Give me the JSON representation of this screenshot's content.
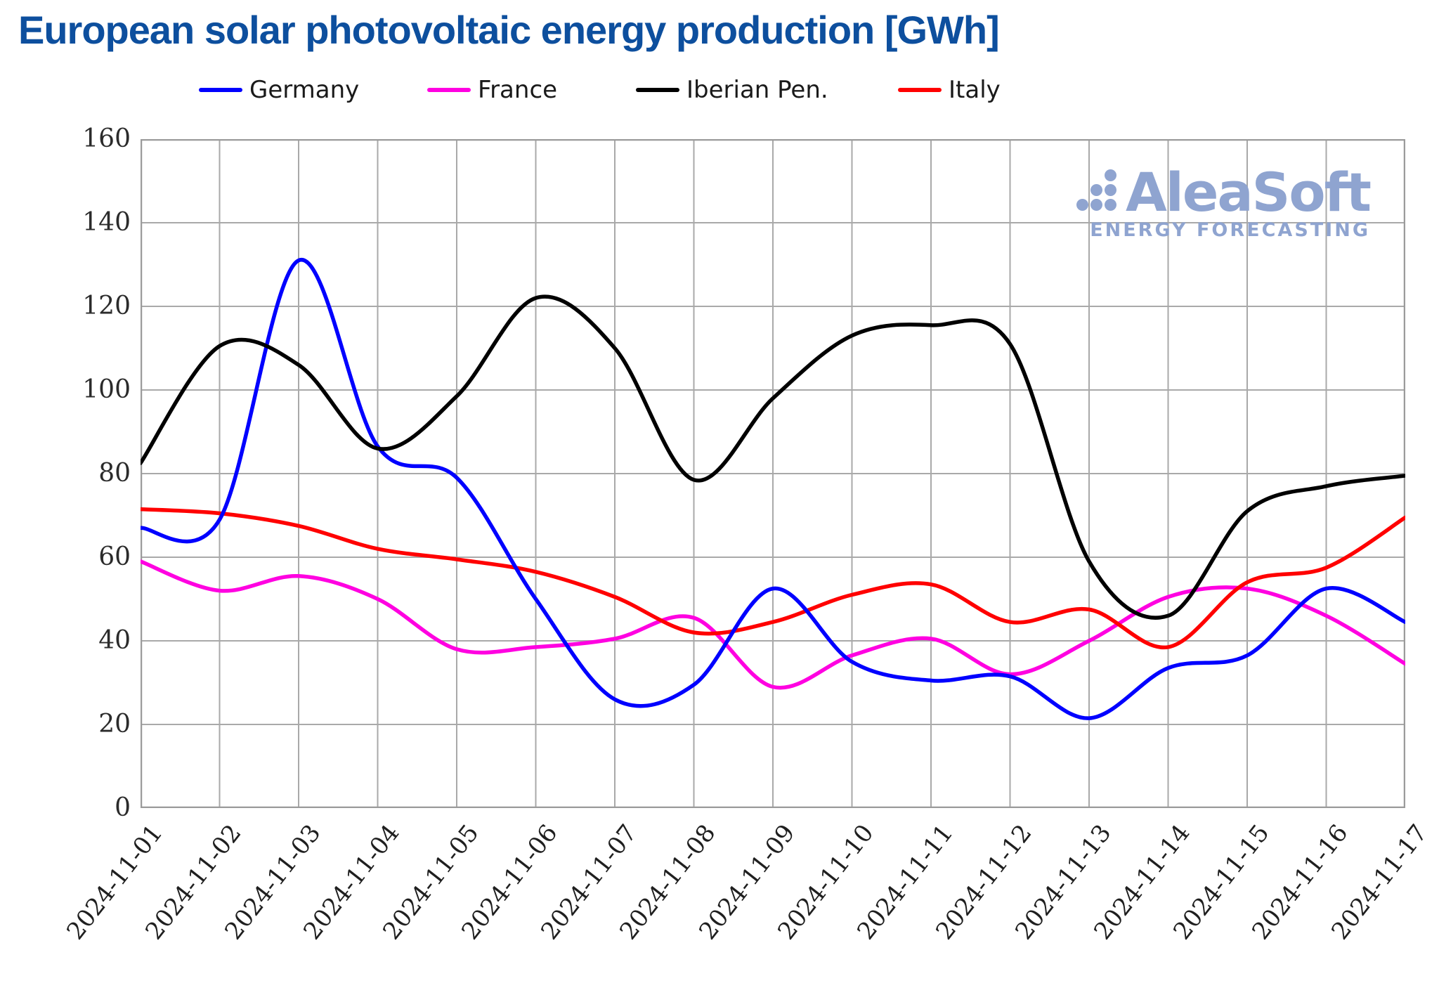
{
  "title": "European solar photovoltaic energy production [GWh]",
  "title_color": "#0D4F9E",
  "logo": {
    "name": "AleaSoft",
    "tagline": "ENERGY FORECASTING",
    "color": "#8FA4D0"
  },
  "plot": {
    "grid_color": "#A9A9A9",
    "frame_color": "#9B9B9B",
    "background": "#ffffff"
  },
  "chart_data": {
    "type": "line",
    "title": "European solar photovoltaic energy production [GWh]",
    "xlabel": "",
    "ylabel": "",
    "ylim": [
      0,
      160
    ],
    "yticks": [
      0,
      20,
      40,
      60,
      80,
      100,
      120,
      140,
      160
    ],
    "grid": true,
    "legend_position": "top",
    "x": [
      "2024-11-01",
      "2024-11-02",
      "2024-11-03",
      "2024-11-04",
      "2024-11-05",
      "2024-11-06",
      "2024-11-07",
      "2024-11-08",
      "2024-11-09",
      "2024-11-10",
      "2024-11-11",
      "2024-11-12",
      "2024-11-13",
      "2024-11-14",
      "2024-11-15",
      "2024-11-16",
      "2024-11-17"
    ],
    "series": [
      {
        "name": "Germany",
        "color": "#0000FF",
        "values": [
          67,
          69,
          131,
          86.5,
          79,
          50,
          26,
          29.5,
          52.5,
          35,
          30.5,
          31.5,
          21.5,
          33.5,
          36.5,
          52.5,
          44.5
        ]
      },
      {
        "name": "France",
        "color": "#FF00E1",
        "values": [
          59,
          52,
          55.5,
          50,
          38,
          38.5,
          40.5,
          45.5,
          29,
          36.5,
          40.5,
          32,
          40,
          50.5,
          52.5,
          46,
          34.5
        ]
      },
      {
        "name": "Iberian Pen.",
        "color": "#000000",
        "values": [
          82.5,
          110.5,
          106,
          86,
          98.5,
          122,
          110,
          78.5,
          98,
          113,
          115.5,
          111,
          59,
          46,
          71,
          77,
          79.5
        ]
      },
      {
        "name": "Italy",
        "color": "#FF0000",
        "values": [
          71.5,
          70.5,
          67.5,
          62,
          59.5,
          56.5,
          50.5,
          42,
          44.5,
          51,
          53.5,
          44.5,
          47.5,
          38.5,
          54,
          57.5,
          69.5
        ]
      }
    ]
  },
  "layout_note": "line chart, 17 daily points per series, legend order Germany/France/Iberian Pen./Italy"
}
